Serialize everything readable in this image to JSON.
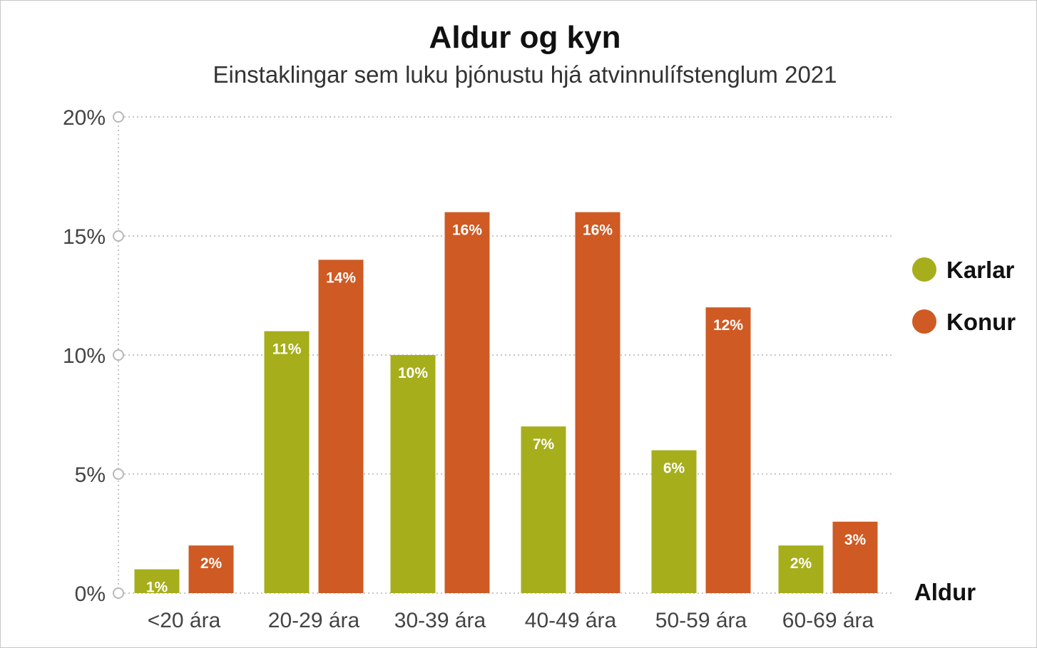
{
  "chart_data": {
    "type": "bar",
    "title": "Aldur og kyn",
    "subtitle": "Einstaklingar sem luku þjónustu hjá atvinnulífstenglum 2021",
    "xlabel": "Aldur",
    "ylabel": "",
    "categories": [
      "<20 ára",
      "20-29 ára",
      "30-39 ára",
      "40-49 ára",
      "50-59 ára",
      "60-69 ára"
    ],
    "series": [
      {
        "name": "Karlar",
        "color": "#a6ae1b",
        "values": [
          1,
          11,
          10,
          7,
          6,
          2
        ],
        "labels": [
          "1%",
          "11%",
          "10%",
          "7%",
          "6%",
          "2%"
        ]
      },
      {
        "name": "Konur",
        "color": "#cf5a24",
        "values": [
          2,
          14,
          16,
          16,
          12,
          3
        ],
        "labels": [
          "2%",
          "14%",
          "16%",
          "16%",
          "12%",
          "3%"
        ]
      }
    ],
    "ylim": [
      0,
      20
    ],
    "yticks": [
      0,
      5,
      10,
      15,
      20
    ],
    "ytick_labels": [
      "0%",
      "5%",
      "10%",
      "15%",
      "20%"
    ],
    "grid": true,
    "legend_position": "right"
  }
}
